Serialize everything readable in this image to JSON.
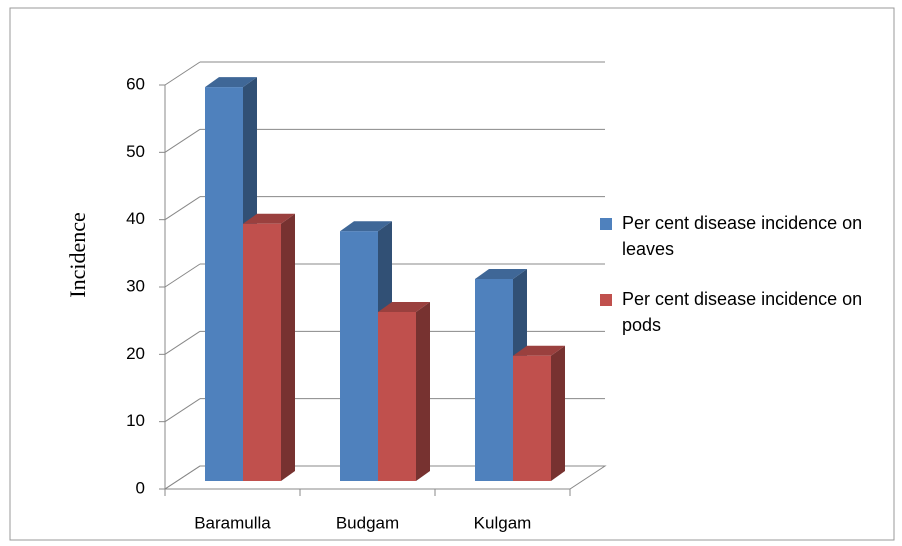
{
  "chart_data": {
    "type": "bar3d",
    "y_label": "Incidence",
    "categories": [
      "Baramulla",
      "Budgam",
      "Kulgam"
    ],
    "series": [
      {
        "name": "Per cent disease incidence on leaves",
        "color": "#4f81bd",
        "values": [
          58.5,
          37.1,
          30
        ]
      },
      {
        "name": "Per cent disease incidence on pods",
        "color": "#c0504d",
        "values": [
          38.2,
          25.1,
          18.6
        ]
      }
    ],
    "ylim": [
      0,
      60
    ],
    "yticks": [
      0,
      10,
      20,
      30,
      40,
      50,
      60
    ],
    "grid": true,
    "legend": "right"
  }
}
